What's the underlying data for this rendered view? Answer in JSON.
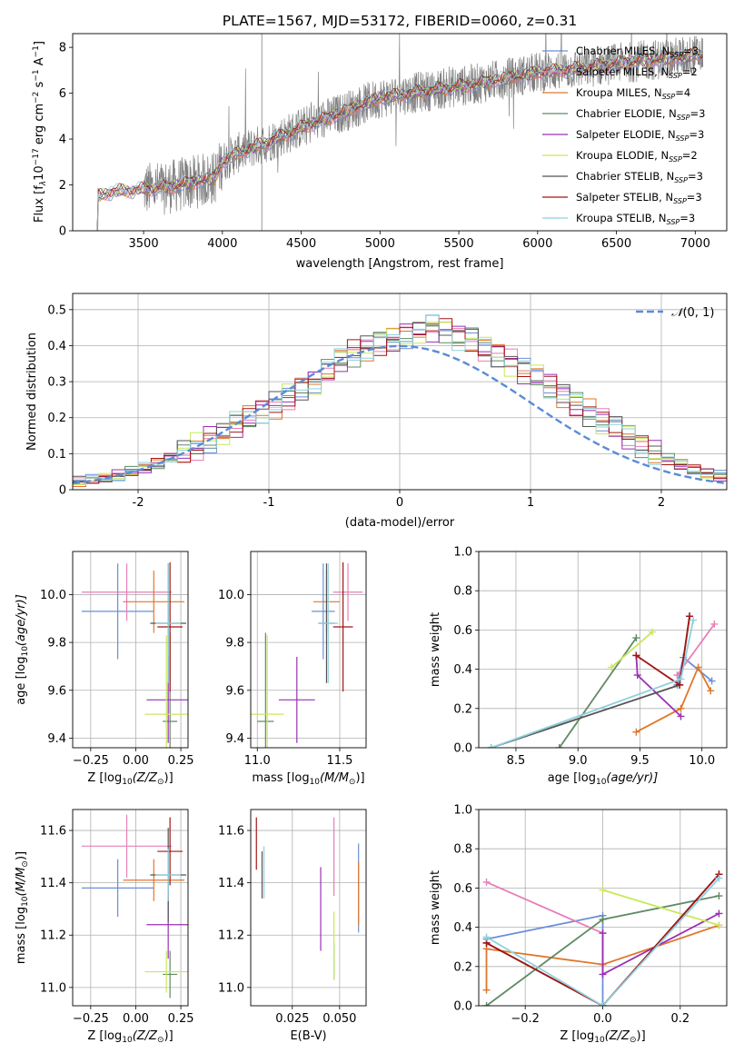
{
  "figure": {
    "title": "PLATE=1567, MJD=53172, FIBERID=0060, z=0.31"
  },
  "colors": {
    "chabrier_miles": "#6b8fd8",
    "salpeter_miles": "#e67fb8",
    "kroupa_miles": "#e0762b",
    "chabrier_elodie": "#5f8a65",
    "salpeter_elodie": "#9a2fb5",
    "kroupa_elodie": "#c8e85a",
    "chabrier_stelib": "#555555",
    "salpeter_stelib": "#a31515",
    "kroupa_stelib": "#8fd0dc",
    "data": "#808080",
    "normal": "#5b8bd6",
    "grid": "#b0b0b0"
  },
  "chart_data": [
    {
      "id": "spectrum",
      "type": "line",
      "xlabel": "wavelength [Angstrom, rest frame]",
      "ylabel": "Flux [f",
      "ylabel_lambda": "λ",
      "ylabel_unit": "10",
      "ylabel_exp": "−17",
      "ylabel_rest": " erg cm",
      "ylabel_exp2": "−2",
      "ylabel_s": " s",
      "ylabel_exp3": "−1",
      "ylabel_a": " A",
      "ylabel_exp4": "−1",
      "ylabel_close": "]",
      "xlim": [
        3050,
        7200
      ],
      "ylim": [
        0,
        8.6
      ],
      "xticks": [
        3500,
        4000,
        4500,
        5000,
        5500,
        6000,
        6500,
        7000
      ],
      "yticks": [
        0,
        2,
        4,
        6,
        8
      ],
      "grid": false,
      "legend": "right",
      "continuum": [
        [
          3200,
          0
        ],
        [
          3210,
          1.5
        ],
        [
          3300,
          1.7
        ],
        [
          3500,
          1.8
        ],
        [
          3650,
          1.9
        ],
        [
          3800,
          2.1
        ],
        [
          3950,
          2.3
        ],
        [
          4000,
          3.0
        ],
        [
          4100,
          3.4
        ],
        [
          4300,
          3.9
        ],
        [
          4500,
          4.5
        ],
        [
          4700,
          5.0
        ],
        [
          5000,
          5.8
        ],
        [
          5300,
          6.1
        ],
        [
          5600,
          6.4
        ],
        [
          6000,
          6.9
        ],
        [
          6300,
          7.1
        ],
        [
          6500,
          7.3
        ],
        [
          6800,
          7.5
        ],
        [
          7050,
          7.7
        ]
      ],
      "series": [
        {
          "name": "Chabrier MILES",
          "nssp": "3",
          "key": "chabrier_miles"
        },
        {
          "name": "Salpeter MILES",
          "nssp": "2",
          "key": "salpeter_miles"
        },
        {
          "name": "Kroupa MILES",
          "nssp": "4",
          "key": "kroupa_miles"
        },
        {
          "name": "Chabrier ELODIE",
          "nssp": "3",
          "key": "chabrier_elodie"
        },
        {
          "name": "Salpeter ELODIE",
          "nssp": "3",
          "key": "salpeter_elodie"
        },
        {
          "name": "Kroupa ELODIE",
          "nssp": "2",
          "key": "kroupa_elodie"
        },
        {
          "name": "Chabrier STELIB",
          "nssp": "3",
          "key": "chabrier_stelib"
        },
        {
          "name": "Salpeter STELIB",
          "nssp": "3",
          "key": "salpeter_stelib"
        },
        {
          "name": "Kroupa STELIB",
          "nssp": "3",
          "key": "kroupa_stelib"
        }
      ]
    },
    {
      "id": "residuals",
      "type": "histogram",
      "xlabel": "(data-model)/error",
      "ylabel": "Normed distribution",
      "xlim": [
        -2.5,
        2.5
      ],
      "ylim": [
        0,
        0.545
      ],
      "xticks": [
        -2,
        -1,
        0,
        1,
        2
      ],
      "yticks": [
        0.0,
        0.1,
        0.2,
        0.3,
        0.4,
        0.5
      ],
      "grid": true,
      "legend": "top-right",
      "normal_label": "(0, 1)",
      "bin_width": 0.1,
      "bins_start": -2.5,
      "base_profile": [
        0.022,
        0.028,
        0.033,
        0.04,
        0.05,
        0.06,
        0.072,
        0.088,
        0.105,
        0.12,
        0.14,
        0.16,
        0.18,
        0.2,
        0.215,
        0.235,
        0.26,
        0.285,
        0.3,
        0.33,
        0.36,
        0.38,
        0.395,
        0.41,
        0.42,
        0.43,
        0.44,
        0.45,
        0.445,
        0.425,
        0.42,
        0.395,
        0.375,
        0.355,
        0.33,
        0.315,
        0.29,
        0.265,
        0.24,
        0.215,
        0.19,
        0.17,
        0.145,
        0.125,
        0.105,
        0.085,
        0.07,
        0.055,
        0.045,
        0.038
      ],
      "series_keys": [
        "chabrier_miles",
        "salpeter_miles",
        "kroupa_miles",
        "chabrier_elodie",
        "salpeter_elodie",
        "kroupa_elodie",
        "chabrier_stelib",
        "salpeter_stelib",
        "kroupa_stelib"
      ]
    },
    {
      "id": "age-vs-z",
      "type": "errorbar",
      "xlabel": "Z [log",
      "xlabel_sub": "10",
      "xlabel_rest": "(Z/Z",
      "xlabel_sun": "⊙",
      "xlabel_close": ")]",
      "ylabel": "age  [log",
      "ylabel_sub": "10",
      "ylabel_rest": "(age/yr)]",
      "xlim": [
        -0.35,
        0.29
      ],
      "ylim": [
        9.36,
        10.18
      ],
      "xticks": [
        -0.25,
        0.0,
        0.25
      ],
      "xticklabels": [
        "−0.25",
        "0.00",
        "0.25"
      ],
      "yticks": [
        9.4,
        9.6,
        9.8,
        10.0
      ],
      "yticklabels": [
        "9.4",
        "9.6",
        "9.8",
        "10.0"
      ],
      "grid": true,
      "points": [
        {
          "key": "chabrier_miles",
          "x": -0.1,
          "xerr": 0.2,
          "y": 9.93,
          "yerr": 0.2
        },
        {
          "key": "salpeter_miles",
          "x": -0.05,
          "xerr": 0.25,
          "y": 10.01,
          "yerr": 0.12
        },
        {
          "key": "kroupa_miles",
          "x": 0.1,
          "xerr": 0.17,
          "y": 9.97,
          "yerr": 0.13
        },
        {
          "key": "chabrier_elodie",
          "x": 0.19,
          "xerr": 0.04,
          "y": 9.47,
          "yerr": 0.37
        },
        {
          "key": "salpeter_elodie",
          "x": 0.18,
          "xerr": 0.12,
          "y": 9.56,
          "yerr": 0.18
        },
        {
          "key": "kroupa_elodie",
          "x": 0.17,
          "xerr": 0.12,
          "y": 9.5,
          "yerr": 0.33
        },
        {
          "key": "chabrier_stelib",
          "x": 0.18,
          "xerr": 0.1,
          "y": 9.88,
          "yerr": 0.25
        },
        {
          "key": "salpeter_stelib",
          "x": 0.19,
          "xerr": 0.07,
          "y": 9.865,
          "yerr": 0.27
        },
        {
          "key": "kroupa_stelib",
          "x": 0.18,
          "xerr": 0.07,
          "y": 9.88,
          "yerr": 0.25
        }
      ]
    },
    {
      "id": "age-vs-mass",
      "type": "errorbar",
      "xlabel": "mass [log",
      "xlabel_sub": "10",
      "xlabel_rest": "(M/M",
      "xlabel_sun": "⊙",
      "xlabel_close": ")]",
      "xlim": [
        10.96,
        11.66
      ],
      "ylim": [
        9.36,
        10.18
      ],
      "xticks": [
        11.0,
        11.5
      ],
      "xticklabels": [
        "11.0",
        "11.5"
      ],
      "yticks": [
        9.4,
        9.6,
        9.8,
        10.0
      ],
      "yticklabels": [
        "9.4",
        "9.6",
        "9.8",
        "10.0"
      ],
      "grid": true,
      "points": [
        {
          "key": "chabrier_miles",
          "x": 11.4,
          "xerr": 0.07,
          "y": 9.93,
          "yerr": 0.2
        },
        {
          "key": "salpeter_miles",
          "x": 11.55,
          "xerr": 0.09,
          "y": 10.01,
          "yerr": 0.12
        },
        {
          "key": "kroupa_miles",
          "x": 11.42,
          "xerr": 0.08,
          "y": 9.97,
          "yerr": 0.13
        },
        {
          "key": "chabrier_elodie",
          "x": 11.05,
          "xerr": 0.05,
          "y": 9.47,
          "yerr": 0.37
        },
        {
          "key": "salpeter_elodie",
          "x": 11.24,
          "xerr": 0.11,
          "y": 9.56,
          "yerr": 0.18
        },
        {
          "key": "kroupa_elodie",
          "x": 11.06,
          "xerr": 0.1,
          "y": 9.5,
          "yerr": 0.33
        },
        {
          "key": "chabrier_stelib",
          "x": 11.42,
          "xerr": 0.05,
          "y": 9.88,
          "yerr": 0.25
        },
        {
          "key": "salpeter_stelib",
          "x": 11.52,
          "xerr": 0.06,
          "y": 9.865,
          "yerr": 0.27
        },
        {
          "key": "kroupa_stelib",
          "x": 11.43,
          "xerr": 0.06,
          "y": 9.88,
          "yerr": 0.25
        }
      ]
    },
    {
      "id": "weight-vs-age",
      "type": "line",
      "xlabel": "age  [log",
      "xlabel_sub": "10",
      "xlabel_rest": "(age/yr)]",
      "ylabel": "mass weight",
      "xlim": [
        8.2,
        10.2
      ],
      "ylim": [
        0,
        1.0
      ],
      "xticks": [
        8.5,
        9.0,
        9.5,
        10.0
      ],
      "xticklabels": [
        "8.5",
        "9.0",
        "9.5",
        "10.0"
      ],
      "yticks": [
        0.0,
        0.2,
        0.4,
        0.6,
        0.8,
        1.0
      ],
      "yticklabels": [
        "0.0",
        "0.2",
        "0.4",
        "0.6",
        "0.8",
        "1.0"
      ],
      "grid": true,
      "series": [
        {
          "key": "chabrier_miles",
          "x": [
            9.8,
            9.85,
            10.08
          ],
          "y": [
            0.32,
            0.46,
            0.34
          ]
        },
        {
          "key": "salpeter_miles",
          "x": [
            9.8,
            10.1
          ],
          "y": [
            0.37,
            0.63
          ]
        },
        {
          "key": "kroupa_miles",
          "x": [
            9.47,
            9.83,
            9.97,
            10.07
          ],
          "y": [
            0.08,
            0.2,
            0.41,
            0.29
          ]
        },
        {
          "key": "chabrier_elodie",
          "x": [
            8.85,
            9.47
          ],
          "y": [
            0.0,
            0.56
          ]
        },
        {
          "key": "salpeter_elodie",
          "x": [
            9.47,
            9.48,
            9.83
          ],
          "y": [
            0.47,
            0.37,
            0.16
          ]
        },
        {
          "key": "kroupa_elodie",
          "x": [
            9.27,
            9.6
          ],
          "y": [
            0.41,
            0.59
          ]
        },
        {
          "key": "chabrier_stelib",
          "x": [
            8.3,
            9.82,
            9.9
          ],
          "y": [
            0.0,
            0.32,
            0.67
          ]
        },
        {
          "key": "salpeter_stelib",
          "x": [
            9.47,
            9.82,
            9.9
          ],
          "y": [
            0.47,
            0.32,
            0.67
          ]
        },
        {
          "key": "kroupa_stelib",
          "x": [
            8.3,
            9.83,
            9.93
          ],
          "y": [
            0.0,
            0.35,
            0.65
          ]
        }
      ]
    },
    {
      "id": "mass-vs-z",
      "type": "errorbar",
      "xlabel": "Z [log",
      "xlabel_sub": "10",
      "xlabel_rest": "(Z/Z",
      "xlabel_sun": "⊙",
      "xlabel_close": ")]",
      "ylabel": "mass [log",
      "ylabel_sub": "10",
      "ylabel_rest": "(M/M",
      "ylabel_sun": "⊙",
      "ylabel_close": ")]",
      "xlim": [
        -0.35,
        0.29
      ],
      "ylim": [
        10.93,
        11.68
      ],
      "xticks": [
        -0.25,
        0.0,
        0.25
      ],
      "xticklabels": [
        "−0.25",
        "0.00",
        "0.25"
      ],
      "yticks": [
        11.0,
        11.2,
        11.4,
        11.6
      ],
      "yticklabels": [
        "11.0",
        "11.2",
        "11.4",
        "11.6"
      ],
      "grid": true,
      "points": [
        {
          "key": "chabrier_miles",
          "x": -0.1,
          "xerr": 0.2,
          "y": 11.38,
          "yerr": 0.11
        },
        {
          "key": "salpeter_miles",
          "x": -0.05,
          "xerr": 0.25,
          "y": 11.54,
          "yerr": 0.12
        },
        {
          "key": "kroupa_miles",
          "x": 0.1,
          "xerr": 0.17,
          "y": 11.41,
          "yerr": 0.08
        },
        {
          "key": "chabrier_elodie",
          "x": 0.19,
          "xerr": 0.04,
          "y": 11.05,
          "yerr": 0.09
        },
        {
          "key": "salpeter_elodie",
          "x": 0.18,
          "xerr": 0.12,
          "y": 11.24,
          "yerr": 0.13
        },
        {
          "key": "kroupa_elodie",
          "x": 0.17,
          "xerr": 0.12,
          "y": 11.06,
          "yerr": 0.08
        },
        {
          "key": "chabrier_stelib",
          "x": 0.18,
          "xerr": 0.1,
          "y": 11.43,
          "yerr": 0.18
        },
        {
          "key": "salpeter_stelib",
          "x": 0.19,
          "xerr": 0.07,
          "y": 11.52,
          "yerr": 0.13
        },
        {
          "key": "kroupa_stelib",
          "x": 0.18,
          "xerr": 0.07,
          "y": 11.43,
          "yerr": 0.1
        }
      ]
    },
    {
      "id": "mass-vs-ebv",
      "type": "errorbar",
      "xlabel": "E(B-V)",
      "xlim": [
        0.003,
        0.064
      ],
      "ylim": [
        10.93,
        11.68
      ],
      "xticks": [
        0.025,
        0.05
      ],
      "xticklabels": [
        "0.025",
        "0.050"
      ],
      "yticks": [
        11.0,
        11.2,
        11.4,
        11.6
      ],
      "yticklabels": [
        "11.0",
        "11.2",
        "11.4",
        "11.6"
      ],
      "grid": true,
      "points": [
        {
          "key": "chabrier_miles",
          "x": 0.06,
          "xerr": 0,
          "y": 11.38,
          "yerr": 0.17
        },
        {
          "key": "salpeter_miles",
          "x": 0.047,
          "xerr": 0,
          "y": 11.5,
          "yerr": 0.15
        },
        {
          "key": "kroupa_miles",
          "x": 0.06,
          "xerr": 0,
          "y": 11.36,
          "yerr": 0.12
        },
        {
          "key": "chabrier_elodie",
          "x": 0.047,
          "xerr": 0,
          "y": 11.1,
          "yerr": 0.07
        },
        {
          "key": "salpeter_elodie",
          "x": 0.04,
          "xerr": 0,
          "y": 11.3,
          "yerr": 0.16
        },
        {
          "key": "kroupa_elodie",
          "x": 0.047,
          "xerr": 0,
          "y": 11.16,
          "yerr": 0.13
        },
        {
          "key": "chabrier_stelib",
          "x": 0.009,
          "xerr": 0,
          "y": 11.43,
          "yerr": 0.09
        },
        {
          "key": "salpeter_stelib",
          "x": 0.006,
          "xerr": 0,
          "y": 11.55,
          "yerr": 0.1
        },
        {
          "key": "kroupa_stelib",
          "x": 0.01,
          "xerr": 0,
          "y": 11.44,
          "yerr": 0.1
        }
      ]
    },
    {
      "id": "weight-vs-z",
      "type": "line",
      "xlabel": "Z [log",
      "xlabel_sub": "10",
      "xlabel_rest": "(Z/Z",
      "xlabel_sun": "⊙",
      "xlabel_close": ")]",
      "ylabel": "mass weight",
      "xlim": [
        -0.32,
        0.32
      ],
      "ylim": [
        0,
        1.0
      ],
      "xticks": [
        -0.2,
        0.0,
        0.2
      ],
      "xticklabels": [
        "−0.2",
        "0.0",
        "0.2"
      ],
      "yticks": [
        0.0,
        0.2,
        0.4,
        0.6,
        0.8,
        1.0
      ],
      "yticklabels": [
        "0.0",
        "0.2",
        "0.4",
        "0.6",
        "0.8",
        "1.0"
      ],
      "grid": true,
      "series": [
        {
          "key": "chabrier_miles",
          "x": [
            -0.3,
            0.0,
            0.0
          ],
          "y": [
            0.34,
            0.46,
            0.0
          ]
        },
        {
          "key": "salpeter_miles",
          "x": [
            -0.3,
            0.0
          ],
          "y": [
            0.63,
            0.37
          ]
        },
        {
          "key": "kroupa_miles",
          "x": [
            -0.3,
            -0.3,
            0.0,
            0.3
          ],
          "y": [
            0.08,
            0.29,
            0.21,
            0.41
          ]
        },
        {
          "key": "chabrier_elodie",
          "x": [
            -0.3,
            0.0,
            0.3
          ],
          "y": [
            0.0,
            0.44,
            0.56
          ]
        },
        {
          "key": "salpeter_elodie",
          "x": [
            0.0,
            0.0,
            0.3
          ],
          "y": [
            0.37,
            0.16,
            0.47
          ]
        },
        {
          "key": "kroupa_elodie",
          "x": [
            0.0,
            0.3
          ],
          "y": [
            0.59,
            0.41
          ]
        },
        {
          "key": "chabrier_stelib",
          "x": [
            -0.3,
            0.0,
            0.3
          ],
          "y": [
            0.32,
            0.0,
            0.67
          ]
        },
        {
          "key": "salpeter_stelib",
          "x": [
            -0.3,
            0.0,
            0.3
          ],
          "y": [
            0.32,
            0.0,
            0.67
          ]
        },
        {
          "key": "kroupa_stelib",
          "x": [
            -0.3,
            0.0,
            0.3
          ],
          "y": [
            0.35,
            0.0,
            0.65
          ]
        }
      ]
    }
  ]
}
